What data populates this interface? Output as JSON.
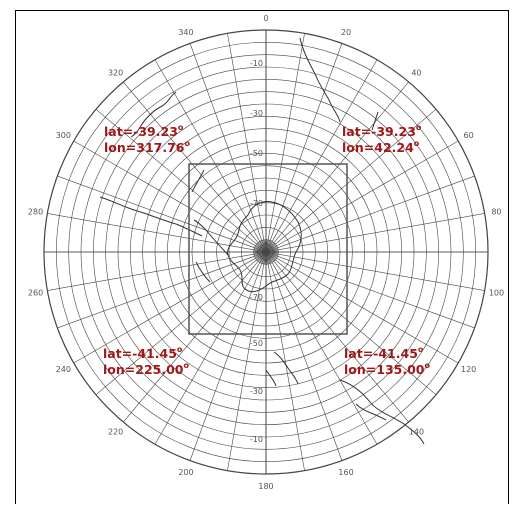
{
  "map": {
    "projection": "south-polar stereographic",
    "colors": {
      "grid": "#444444",
      "coast": "#333333",
      "box": "#555555",
      "label": "#a01818",
      "tick": "#555555"
    },
    "longitude_ticks": [
      "0",
      "20",
      "40",
      "60",
      "80",
      "100",
      "120",
      "140",
      "160",
      "180",
      "200",
      "220",
      "240",
      "260",
      "280",
      "300",
      "320",
      "340"
    ],
    "latitude_ticks_top": [
      "-10",
      "-30",
      "-50",
      "-70"
    ],
    "latitude_ticks_bottom": [
      "-10",
      "-30",
      "-50",
      "-70"
    ],
    "corners": {
      "top_left": {
        "lat": "lat=-39.23",
        "lon": "lon=317.76",
        "deg": "o"
      },
      "top_right": {
        "lat": "lat=-39.23",
        "lon": "lon=42.24",
        "deg": "o"
      },
      "bottom_left": {
        "lat": "lat=-41.45",
        "lon": "lon=225.00",
        "deg": "o"
      },
      "bottom_right": {
        "lat": "lat=-41.45",
        "lon": "lon=135.00",
        "deg": "o"
      }
    }
  }
}
